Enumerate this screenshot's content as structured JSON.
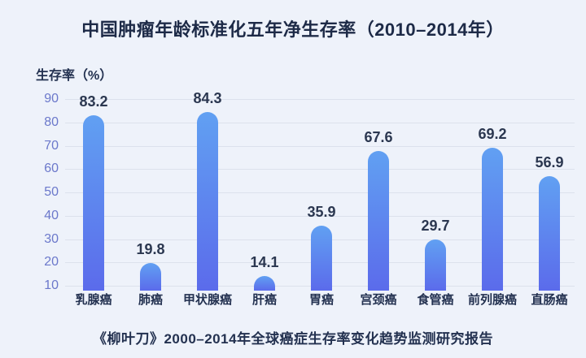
{
  "window": {
    "background": "#EEF2FA"
  },
  "chart_data": {
    "type": "bar",
    "title": "中国肿瘤年龄标准化五年净生存率（2010–2014年）",
    "ylabel": "生存率（%）",
    "xlabel": "",
    "caption": "《柳叶刀》2000–2014年全球癌症生存率变化趋势监测研究报告",
    "categories": [
      "乳腺癌",
      "肺癌",
      "甲状腺癌",
      "肝癌",
      "胃癌",
      "宫颈癌",
      "食管癌",
      "前列腺癌",
      "直肠癌"
    ],
    "values": [
      83.2,
      19.8,
      84.3,
      14.1,
      35.9,
      67.6,
      29.7,
      69.2,
      56.9
    ],
    "value_labels": [
      "83.2",
      "19.8",
      "84.3",
      "14.1",
      "35.9",
      "67.6",
      "29.7",
      "69.2",
      "56.9"
    ],
    "yticks": [
      90,
      80,
      70,
      60,
      50,
      40,
      30,
      20,
      10
    ],
    "ylim": [
      8,
      92
    ],
    "grid": true,
    "legend_position": "none",
    "colors": {
      "background": "#EEF2FA",
      "bar_gradient_top": "#61A0F2",
      "bar_gradient_bottom": "#5B6BEB",
      "gridline": "#DCE1EC",
      "tick_label": "#6B78CB",
      "value_label": "#2B3750",
      "category_label": "#233150",
      "title": "#1D2A47",
      "caption": "#233150"
    }
  }
}
